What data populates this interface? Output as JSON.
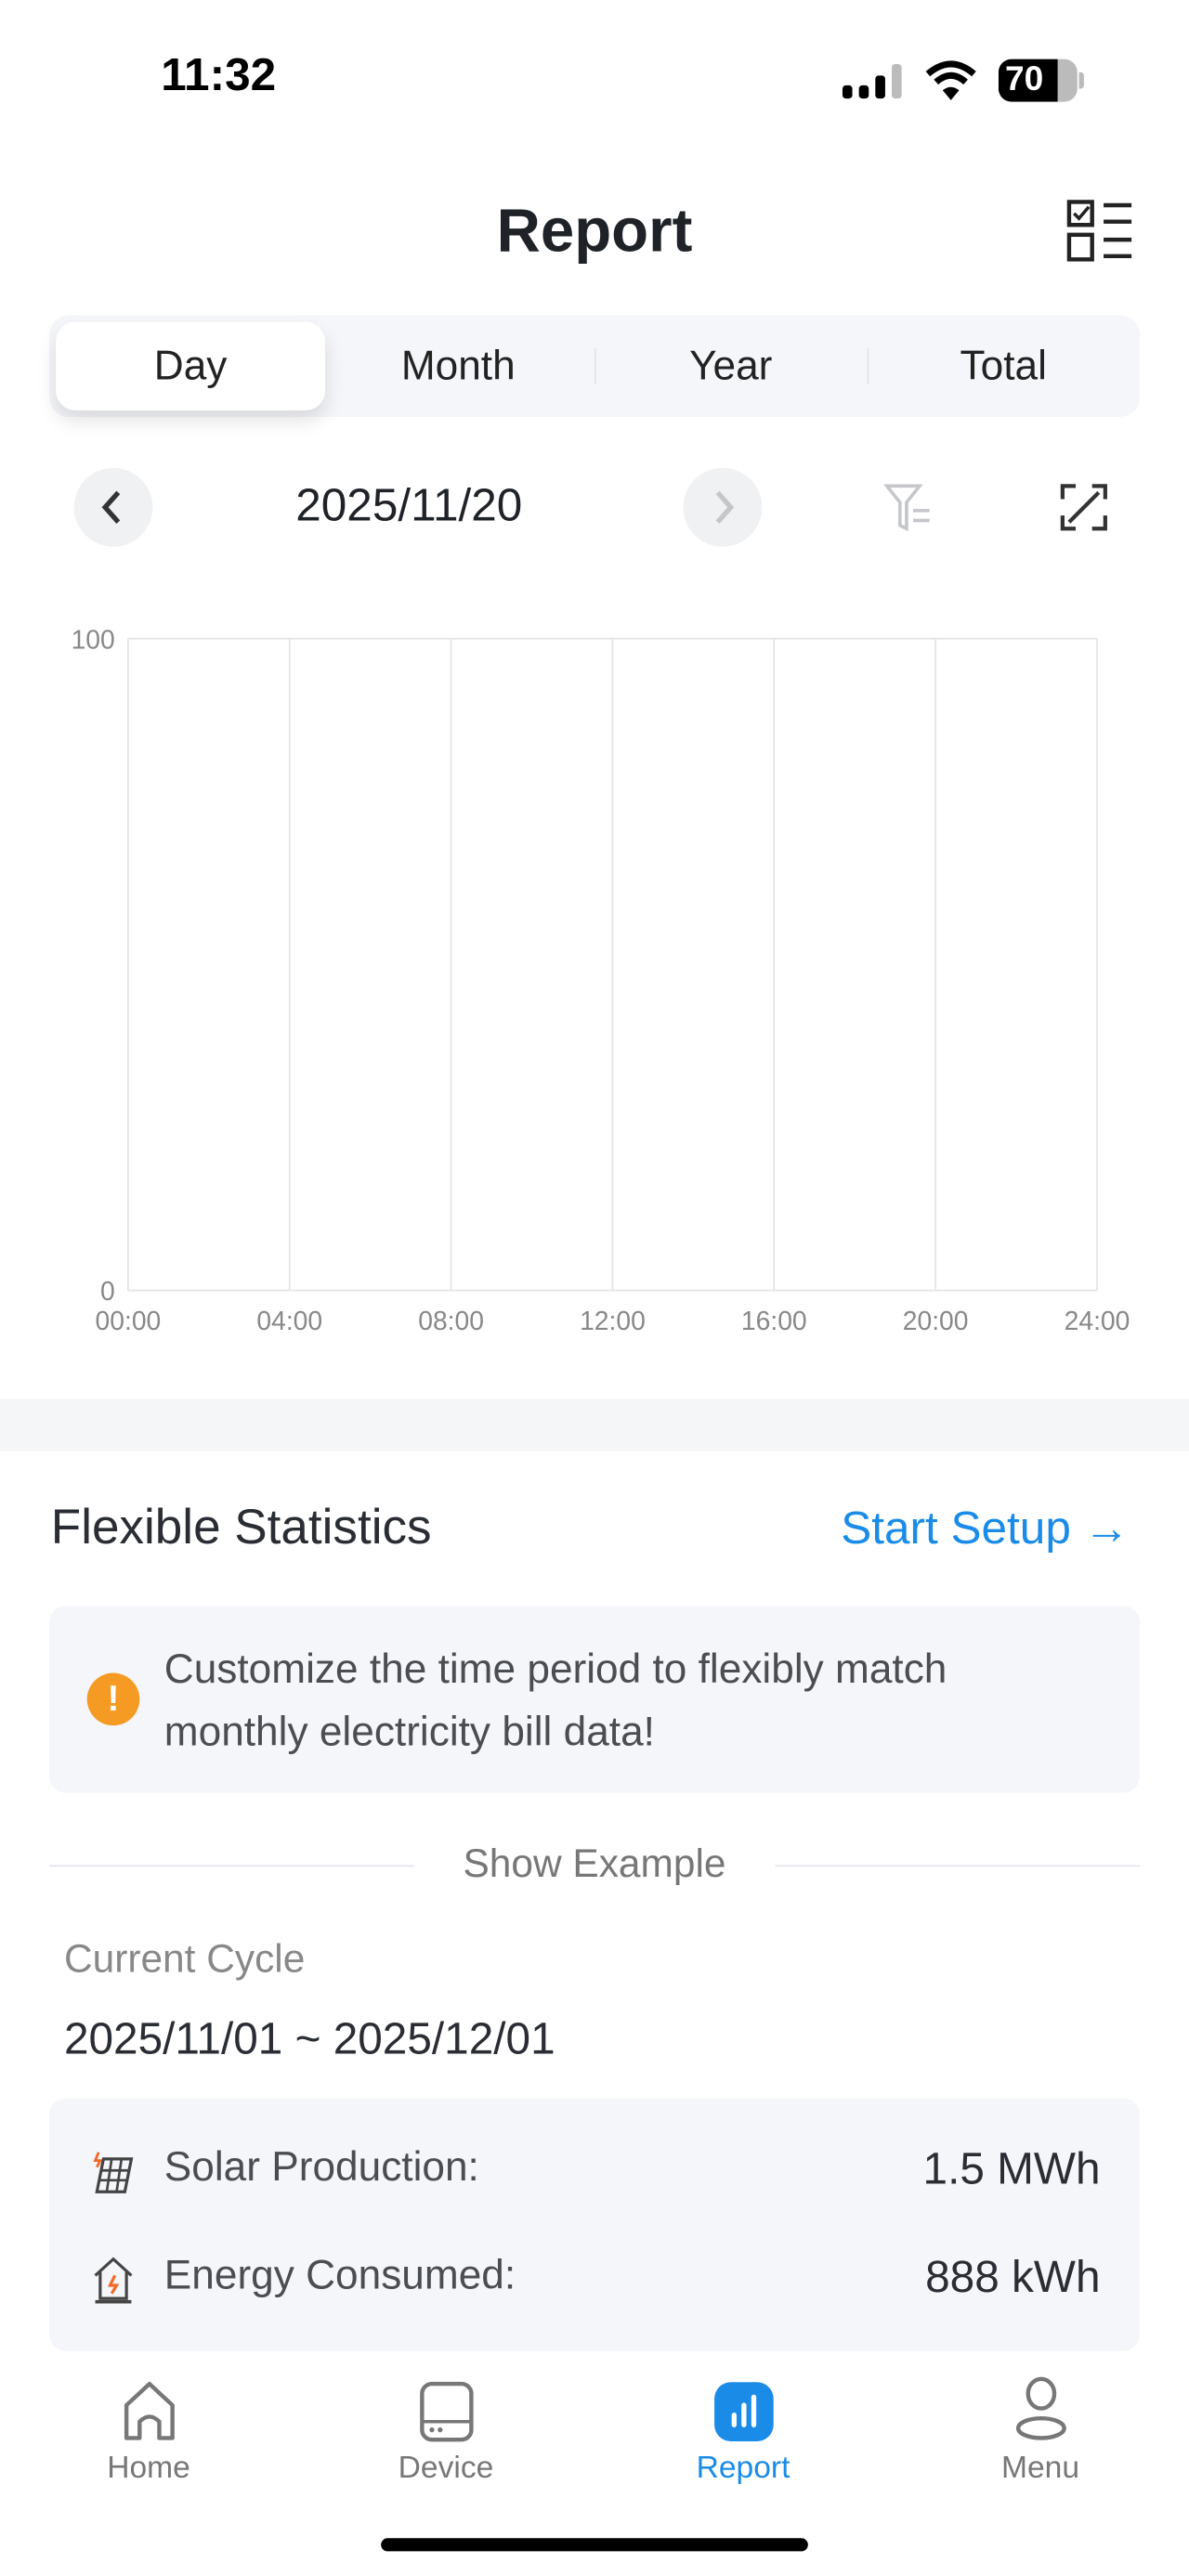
{
  "status_bar": {
    "time": "11:32",
    "battery": "70"
  },
  "header": {
    "title": "Report",
    "icon": "checklist-icon"
  },
  "tabs": [
    {
      "label": "Day",
      "active": true
    },
    {
      "label": "Month",
      "active": false
    },
    {
      "label": "Year",
      "active": false
    },
    {
      "label": "Total",
      "active": false
    }
  ],
  "date_nav": {
    "date": "2025/11/20",
    "prev_icon": "chevron-left-icon",
    "next_icon": "chevron-right-icon",
    "filter_icon": "filter-icon",
    "expand_icon": "expand-icon"
  },
  "chart_data": {
    "type": "bar",
    "x_ticks": [
      "00:00",
      "04:00",
      "08:00",
      "12:00",
      "16:00",
      "20:00",
      "24:00"
    ],
    "y_ticks": [
      "0",
      "100"
    ],
    "ylim": [
      0,
      100
    ],
    "series": [],
    "grid": "vertical"
  },
  "flexible": {
    "title": "Flexible Statistics",
    "setup_label": "Start Setup →",
    "tip": "Customize the time period to flexibly match monthly electricity bill data!",
    "show_example": "Show Example",
    "cycle_label": "Current Cycle",
    "cycle_range": "2025/11/01 ~ 2025/12/01",
    "stats": [
      {
        "label": "Solar Production:",
        "value": "1.5 MWh",
        "icon": "solar-panel-icon"
      },
      {
        "label": "Energy Consumed:",
        "value": "888 kWh",
        "icon": "house-energy-icon"
      }
    ]
  },
  "bottom_nav": [
    {
      "label": "Home",
      "icon": "home-icon",
      "active": false
    },
    {
      "label": "Device",
      "icon": "device-icon",
      "active": false
    },
    {
      "label": "Report",
      "icon": "report-icon",
      "active": true
    },
    {
      "label": "Menu",
      "icon": "user-icon",
      "active": false
    }
  ],
  "colors": {
    "accent": "#1a8ce8",
    "warning": "#f59a23",
    "text": "#1f2328"
  }
}
